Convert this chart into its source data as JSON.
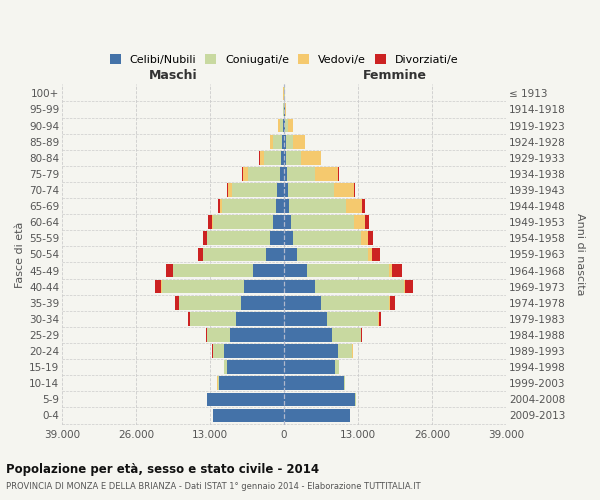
{
  "age_groups": [
    "0-4",
    "5-9",
    "10-14",
    "15-19",
    "20-24",
    "25-29",
    "30-34",
    "35-39",
    "40-44",
    "45-49",
    "50-54",
    "55-59",
    "60-64",
    "65-69",
    "70-74",
    "75-79",
    "80-84",
    "85-89",
    "90-94",
    "95-99",
    "100+"
  ],
  "birth_years": [
    "2009-2013",
    "2004-2008",
    "1999-2003",
    "1994-1998",
    "1989-1993",
    "1984-1988",
    "1979-1983",
    "1974-1978",
    "1969-1973",
    "1964-1968",
    "1959-1963",
    "1954-1958",
    "1949-1953",
    "1944-1948",
    "1939-1943",
    "1934-1938",
    "1929-1933",
    "1924-1928",
    "1919-1923",
    "1914-1918",
    "≤ 1913"
  ],
  "male_celibe": [
    12500,
    13500,
    11500,
    10000,
    10500,
    9500,
    8500,
    7500,
    7000,
    5500,
    3200,
    2500,
    2000,
    1500,
    1200,
    800,
    500,
    400,
    200,
    80,
    50
  ],
  "male_coniugato": [
    50,
    100,
    200,
    500,
    2000,
    4000,
    8000,
    11000,
    14500,
    14000,
    11000,
    11000,
    10500,
    9500,
    8000,
    5500,
    3000,
    1500,
    500,
    100,
    50
  ],
  "male_vedovo": [
    5,
    10,
    10,
    20,
    50,
    50,
    50,
    50,
    100,
    100,
    100,
    100,
    200,
    300,
    600,
    1000,
    800,
    600,
    300,
    50,
    20
  ],
  "male_divorziato": [
    5,
    5,
    10,
    20,
    50,
    150,
    400,
    700,
    1100,
    1200,
    900,
    700,
    600,
    400,
    200,
    100,
    50,
    30,
    20,
    10,
    5
  ],
  "female_celibe": [
    11500,
    12500,
    10500,
    9000,
    9500,
    8500,
    7500,
    6500,
    5500,
    4000,
    2200,
    1500,
    1200,
    900,
    700,
    500,
    400,
    300,
    200,
    80,
    50
  ],
  "female_coniugata": [
    50,
    100,
    200,
    600,
    2500,
    5000,
    9000,
    12000,
    15500,
    14500,
    12500,
    12000,
    11000,
    10000,
    8000,
    5000,
    2500,
    1200,
    400,
    100,
    50
  ],
  "female_vedova": [
    5,
    10,
    10,
    30,
    50,
    50,
    100,
    150,
    300,
    500,
    800,
    1200,
    2000,
    2800,
    3500,
    4000,
    3500,
    2200,
    900,
    200,
    20
  ],
  "female_divorziata": [
    5,
    5,
    10,
    30,
    50,
    200,
    500,
    900,
    1400,
    1800,
    1300,
    900,
    700,
    500,
    300,
    150,
    80,
    40,
    20,
    10,
    5
  ],
  "color_celibe": "#4472a8",
  "color_coniugato": "#c8d9a0",
  "color_vedovo": "#f5c96e",
  "color_divorziato": "#cc2222",
  "title": "Popolazione per età, sesso e stato civile - 2014",
  "subtitle": "PROVINCIA DI MONZA E DELLA BRIANZA - Dati ISTAT 1° gennaio 2014 - Elaborazione TUTTITALIA.IT",
  "ylabel": "Fasce di età",
  "ylabel_right": "Anni di nascita",
  "xlabel_left": "Maschi",
  "xlabel_right": "Femmine",
  "xlim": 39000,
  "xtick_labels": [
    "39.000",
    "26.000",
    "13.000",
    "0",
    "13.000",
    "26.000",
    "39.000"
  ],
  "background_color": "#f5f5f0",
  "grid_color": "#cccccc"
}
